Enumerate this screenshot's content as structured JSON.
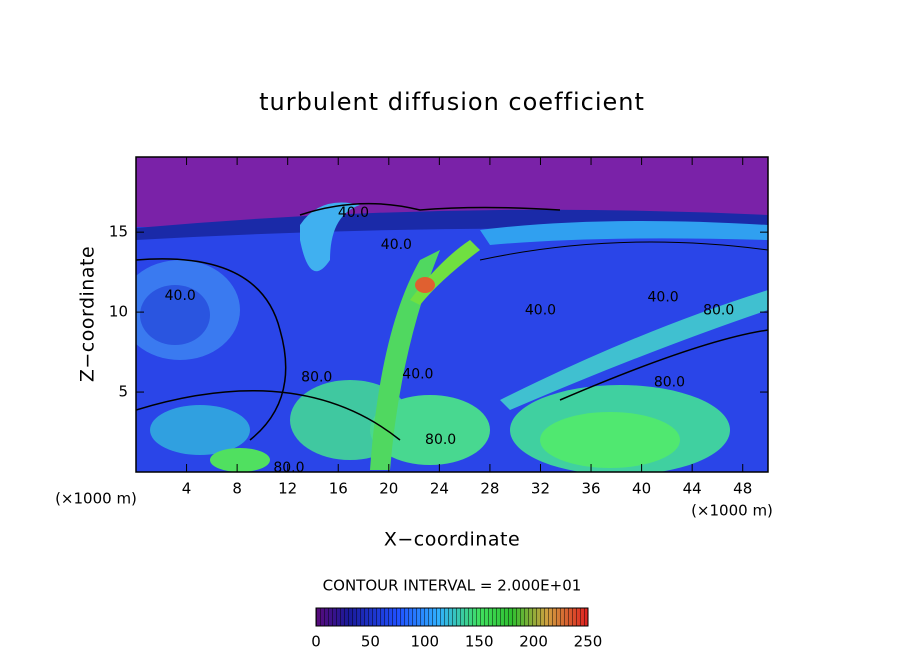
{
  "chart_data": {
    "type": "contour",
    "title": "turbulent diffusion coefficient",
    "xlabel": "X−coordinate",
    "ylabel": "Z−coordinate",
    "x_unit_left": "(×1000 m)",
    "x_unit_right": "(×1000 m)",
    "xlim": [
      0,
      50
    ],
    "ylim": [
      0,
      19.7
    ],
    "xticks": [
      4,
      8,
      12,
      16,
      20,
      24,
      28,
      32,
      36,
      40,
      44,
      48
    ],
    "yticks": [
      5,
      10,
      15
    ],
    "contour_labels": [
      {
        "x": 17.2,
        "y": 16.2,
        "value": 40,
        "label": "40.0"
      },
      {
        "x": 3.5,
        "y": 11,
        "value": 40,
        "label": "40.0"
      },
      {
        "x": 20.6,
        "y": 14.2,
        "value": 40,
        "label": "40.0"
      },
      {
        "x": 32,
        "y": 10.1,
        "value": 40,
        "label": "40.0"
      },
      {
        "x": 41.7,
        "y": 10.9,
        "value": 40,
        "label": "40.0"
      },
      {
        "x": 22.3,
        "y": 6.1,
        "value": 40,
        "label": "40.0"
      },
      {
        "x": 46.1,
        "y": 10.1,
        "value": 80,
        "label": "80.0"
      },
      {
        "x": 42.2,
        "y": 5.6,
        "value": 80,
        "label": "80.0"
      },
      {
        "x": 14.3,
        "y": 5.9,
        "value": 80,
        "label": "80.0"
      },
      {
        "x": 24.1,
        "y": 2,
        "value": 80,
        "label": "80.0"
      },
      {
        "x": 12.1,
        "y": 0.25,
        "value": 80,
        "label": "80.0"
      }
    ],
    "contour_interval_text": "CONTOUR INTERVAL = 2.000E+01",
    "colorbar": {
      "lim": [
        0,
        250
      ],
      "ticks": [
        0,
        50,
        100,
        150,
        200,
        250
      ]
    }
  }
}
